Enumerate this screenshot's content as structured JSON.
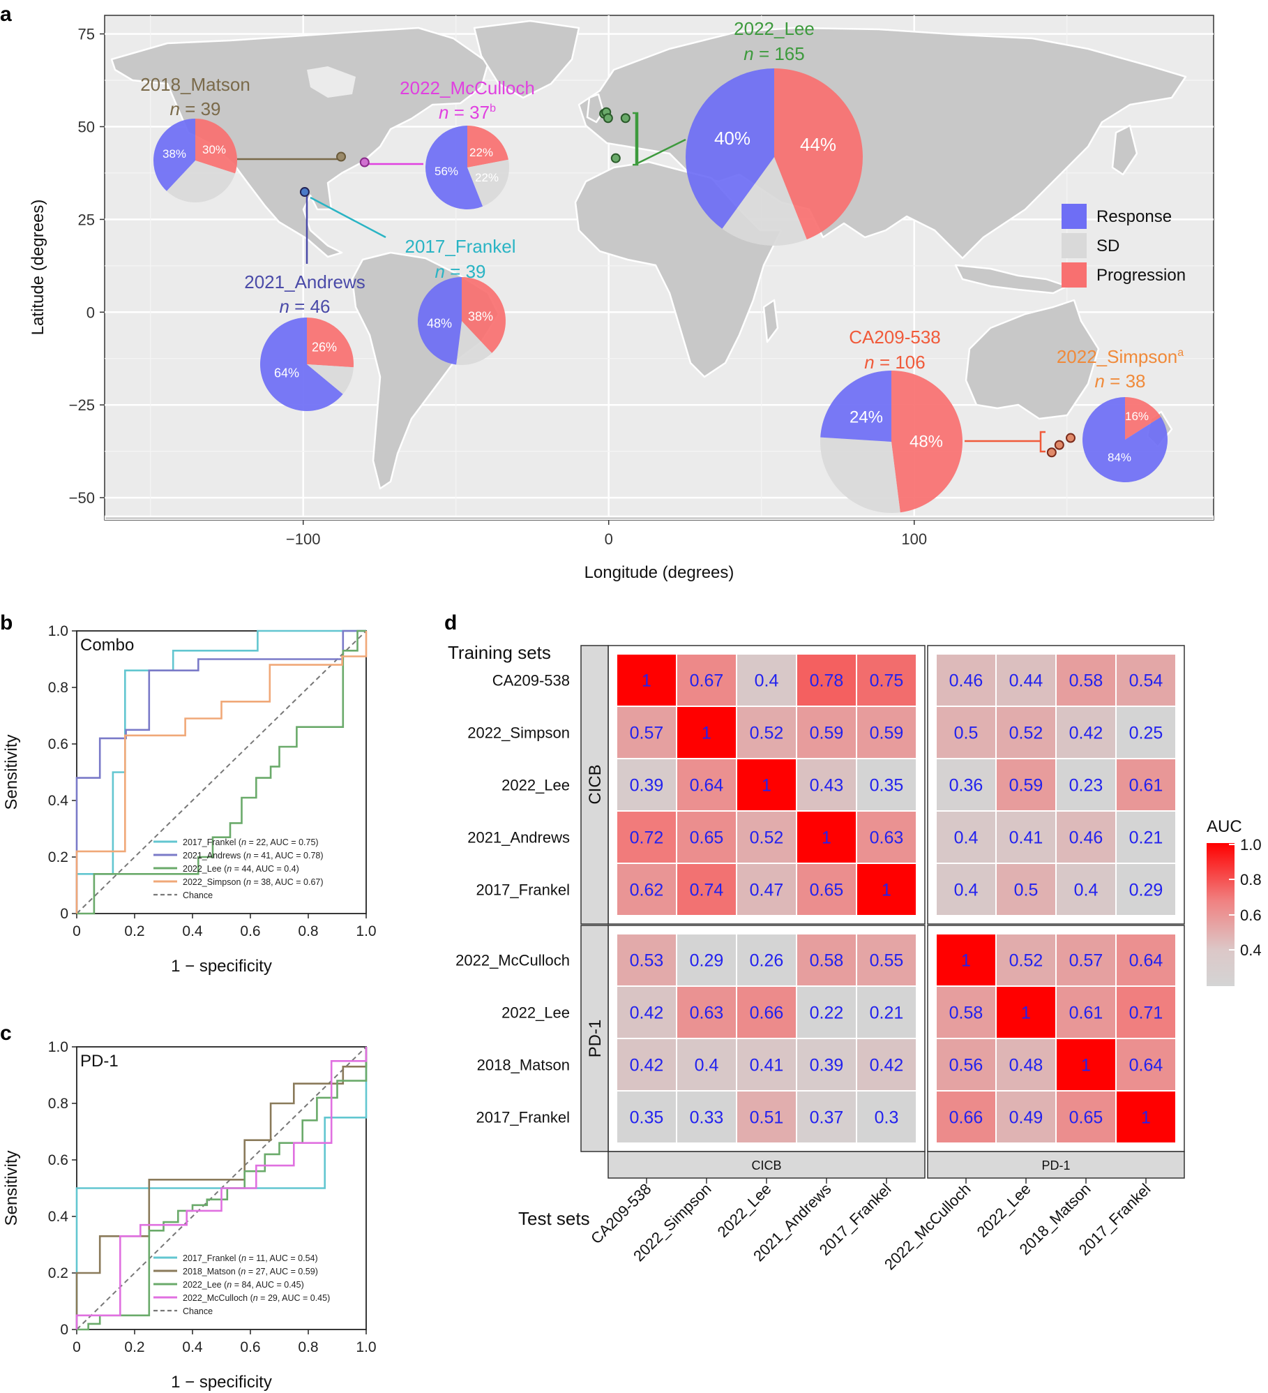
{
  "panel_labels": {
    "a": "a",
    "b": "b",
    "c": "c",
    "d": "d"
  },
  "colors": {
    "response": "#6e6ef5",
    "sd": "#d9d9d9",
    "progression": "#f87070",
    "land": "#c8c8c8",
    "ocean": "#ebebeb",
    "matson": "#7a6a4a",
    "mcculloch": "#e040e0",
    "andrews": "#4a4aa8",
    "frankel": "#2ab4c4",
    "lee": "#3d9a3d",
    "ca209": "#f05a3a",
    "simpson": "#f08a3a",
    "heat_high": "#ff0000",
    "heat_low": "#d4d4d4",
    "heat_text": "#2222ee"
  },
  "chart_data": [
    {
      "id": "a",
      "type": "pie",
      "title": "",
      "xlabel": "Longitude (degrees)",
      "ylabel": "Latitude (degrees)",
      "xlim": [
        -165,
        198
      ],
      "ylim": [
        -56,
        80
      ],
      "xticks": [
        -100,
        0,
        100
      ],
      "xtick_labels": [
        "−100",
        "0",
        "100"
      ],
      "yticks": [
        75,
        50,
        25,
        0,
        -25,
        -50
      ],
      "ytick_labels": [
        "75",
        "50",
        "25",
        "0",
        "−25",
        "−50"
      ],
      "legend": {
        "position": "right",
        "entries": [
          "Response",
          "SD",
          "Progression"
        ]
      },
      "cohorts": [
        {
          "name": "2018_Matson",
          "n_label": "n = 39",
          "sup": "",
          "site": [
            -87.6,
            41.9
          ],
          "response": 38,
          "sd": 32,
          "progression": 30,
          "labels": {
            "response": "38%",
            "progression": "30%",
            "sd": ""
          }
        },
        {
          "name": "2022_McCulloch",
          "n_label": "n = 37",
          "sup": "b",
          "site": [
            -79.9,
            40.4
          ],
          "response": 56,
          "sd": 22,
          "progression": 22,
          "labels": {
            "response": "56%",
            "progression": "22%",
            "sd": "22%"
          }
        },
        {
          "name": "2022_Lee",
          "n_label": "n = 165",
          "sup": "",
          "sites": [
            [
              -0.5,
              53.5
            ],
            [
              -0.2,
              53.8
            ],
            [
              0.5,
              52.2
            ],
            [
              5.5,
              52.3
            ],
            [
              2.3,
              48.9
            ],
            [
              2.5,
              41.5
            ]
          ],
          "response": 40,
          "sd": 16,
          "progression": 44,
          "labels": {
            "response": "40%",
            "progression": "44%",
            "sd": ""
          }
        },
        {
          "name": "2017_Frankel",
          "n_label": "n = 39",
          "sup": "",
          "site": [
            -99.5,
            32.4
          ],
          "response": 48,
          "sd": 14,
          "progression": 38,
          "labels": {
            "response": "48%",
            "progression": "38%",
            "sd": ""
          }
        },
        {
          "name": "2021_Andrews",
          "n_label": "n = 46",
          "sup": "",
          "site": [
            -99.5,
            32.4
          ],
          "response": 64,
          "sd": 10,
          "progression": 26,
          "labels": {
            "response": "64%",
            "progression": "26%",
            "sd": ""
          }
        },
        {
          "name": "CA209-538",
          "n_label": "n = 106",
          "sup": "",
          "sites": [
            [
              145,
              -37.8
            ],
            [
              147.5,
              -35.8
            ],
            [
              151.2,
              -33.9
            ]
          ],
          "response": 24,
          "sd": 28,
          "progression": 48,
          "labels": {
            "response": "24%",
            "progression": "48%",
            "sd": ""
          }
        },
        {
          "name": "2022_Simpson",
          "n_label": "n = 38",
          "sup": "a",
          "sites": [
            [
              151.2,
              -33.9
            ]
          ],
          "response": 84,
          "sd": 0,
          "progression": 16,
          "labels": {
            "response": "84%",
            "progression": "16%",
            "sd": ""
          }
        }
      ]
    },
    {
      "id": "b",
      "type": "line",
      "panel_title": "Combo",
      "xlabel": "1 − specificity",
      "ylabel": "Sensitivity",
      "xlim": [
        0,
        1
      ],
      "ylim": [
        0,
        1
      ],
      "ticks": [
        "0",
        "0.2",
        "0.4",
        "0.6",
        "0.8",
        "1.0"
      ],
      "series": [
        {
          "name": "2017_Frankel",
          "n": "22",
          "auc": "0.75",
          "color": "#62c6d0",
          "points": [
            [
              0,
              0
            ],
            [
              0,
              0.14
            ],
            [
              0.125,
              0.14
            ],
            [
              0.125,
              0.5
            ],
            [
              0.167,
              0.5
            ],
            [
              0.167,
              0.86
            ],
            [
              0.333,
              0.86
            ],
            [
              0.333,
              0.93
            ],
            [
              0.625,
              0.93
            ],
            [
              0.625,
              1
            ],
            [
              1,
              1
            ]
          ]
        },
        {
          "name": "2021_Andrews",
          "n": "41",
          "auc": "0.78",
          "color": "#7a7ac8",
          "points": [
            [
              0,
              0
            ],
            [
              0,
              0.48
            ],
            [
              0.08,
              0.48
            ],
            [
              0.08,
              0.62
            ],
            [
              0.17,
              0.62
            ],
            [
              0.17,
              0.65
            ],
            [
              0.25,
              0.65
            ],
            [
              0.25,
              0.86
            ],
            [
              0.42,
              0.86
            ],
            [
              0.42,
              0.9
            ],
            [
              0.92,
              0.9
            ],
            [
              0.92,
              1
            ],
            [
              1,
              1
            ]
          ]
        },
        {
          "name": "2022_Lee",
          "n": "44",
          "auc": "0.4",
          "color": "#6aaa6a",
          "points": [
            [
              0,
              0
            ],
            [
              0.06,
              0
            ],
            [
              0.06,
              0.14
            ],
            [
              0.42,
              0.14
            ],
            [
              0.42,
              0.2
            ],
            [
              0.47,
              0.2
            ],
            [
              0.47,
              0.27
            ],
            [
              0.53,
              0.27
            ],
            [
              0.53,
              0.32
            ],
            [
              0.57,
              0.32
            ],
            [
              0.57,
              0.41
            ],
            [
              0.62,
              0.41
            ],
            [
              0.62,
              0.48
            ],
            [
              0.67,
              0.48
            ],
            [
              0.67,
              0.52
            ],
            [
              0.7,
              0.52
            ],
            [
              0.7,
              0.59
            ],
            [
              0.76,
              0.59
            ],
            [
              0.76,
              0.66
            ],
            [
              0.92,
              0.66
            ],
            [
              0.92,
              0.93
            ],
            [
              0.97,
              0.93
            ],
            [
              0.97,
              1
            ],
            [
              1,
              1
            ]
          ]
        },
        {
          "name": "2022_Simpson",
          "n": "38",
          "auc": "0.67",
          "color": "#f0a878",
          "points": [
            [
              0,
              0
            ],
            [
              0,
              0.22
            ],
            [
              0.167,
              0.22
            ],
            [
              0.167,
              0.63
            ],
            [
              0.375,
              0.63
            ],
            [
              0.375,
              0.69
            ],
            [
              0.5,
              0.69
            ],
            [
              0.5,
              0.75
            ],
            [
              0.667,
              0.75
            ],
            [
              0.667,
              0.88
            ],
            [
              0.917,
              0.88
            ],
            [
              0.917,
              0.91
            ],
            [
              1,
              0.91
            ],
            [
              1,
              1
            ]
          ]
        }
      ],
      "chance_label": "Chance"
    },
    {
      "id": "c",
      "type": "line",
      "panel_title": "PD-1",
      "xlabel": "1 − specificity",
      "ylabel": "Sensitivity",
      "xlim": [
        0,
        1
      ],
      "ylim": [
        0,
        1
      ],
      "ticks": [
        "0",
        "0.2",
        "0.4",
        "0.6",
        "0.8",
        "1.0"
      ],
      "series": [
        {
          "name": "2017_Frankel",
          "n": "11",
          "auc": "0.54",
          "color": "#62c6d0",
          "points": [
            [
              0,
              0
            ],
            [
              0,
              0.5
            ],
            [
              0.857,
              0.5
            ],
            [
              0.857,
              0.75
            ],
            [
              1,
              0.75
            ],
            [
              1,
              1
            ]
          ]
        },
        {
          "name": "2018_Matson",
          "n": "27",
          "auc": "0.59",
          "color": "#8a7a5a",
          "points": [
            [
              0,
              0
            ],
            [
              0,
              0.2
            ],
            [
              0.08,
              0.2
            ],
            [
              0.08,
              0.33
            ],
            [
              0.25,
              0.33
            ],
            [
              0.25,
              0.53
            ],
            [
              0.58,
              0.53
            ],
            [
              0.58,
              0.67
            ],
            [
              0.67,
              0.67
            ],
            [
              0.67,
              0.8
            ],
            [
              0.75,
              0.8
            ],
            [
              0.75,
              0.87
            ],
            [
              0.92,
              0.87
            ],
            [
              0.92,
              0.93
            ],
            [
              1,
              0.93
            ],
            [
              1,
              1
            ]
          ]
        },
        {
          "name": "2022_Lee",
          "n": "84",
          "auc": "0.45",
          "color": "#6aaa6a",
          "points": [
            [
              0,
              0
            ],
            [
              0.04,
              0
            ],
            [
              0.04,
              0.02
            ],
            [
              0.08,
              0.02
            ],
            [
              0.08,
              0.05
            ],
            [
              0.25,
              0.05
            ],
            [
              0.25,
              0.35
            ],
            [
              0.3,
              0.35
            ],
            [
              0.3,
              0.38
            ],
            [
              0.35,
              0.38
            ],
            [
              0.35,
              0.42
            ],
            [
              0.4,
              0.42
            ],
            [
              0.4,
              0.44
            ],
            [
              0.45,
              0.44
            ],
            [
              0.45,
              0.46
            ],
            [
              0.52,
              0.46
            ],
            [
              0.52,
              0.5
            ],
            [
              0.58,
              0.5
            ],
            [
              0.58,
              0.56
            ],
            [
              0.65,
              0.56
            ],
            [
              0.65,
              0.62
            ],
            [
              0.7,
              0.62
            ],
            [
              0.7,
              0.66
            ],
            [
              0.78,
              0.66
            ],
            [
              0.78,
              0.74
            ],
            [
              0.83,
              0.74
            ],
            [
              0.83,
              0.82
            ],
            [
              0.9,
              0.82
            ],
            [
              0.9,
              0.88
            ],
            [
              1,
              0.88
            ],
            [
              1,
              1
            ]
          ]
        },
        {
          "name": "2022_McCulloch",
          "n": "29",
          "auc": "0.45",
          "color": "#e070e0",
          "points": [
            [
              0,
              0
            ],
            [
              0,
              0.05
            ],
            [
              0.15,
              0.05
            ],
            [
              0.15,
              0.33
            ],
            [
              0.22,
              0.33
            ],
            [
              0.22,
              0.37
            ],
            [
              0.38,
              0.37
            ],
            [
              0.38,
              0.42
            ],
            [
              0.5,
              0.42
            ],
            [
              0.5,
              0.5
            ],
            [
              0.62,
              0.5
            ],
            [
              0.62,
              0.58
            ],
            [
              0.75,
              0.58
            ],
            [
              0.75,
              0.66
            ],
            [
              0.88,
              0.66
            ],
            [
              0.88,
              0.95
            ],
            [
              1,
              0.95
            ],
            [
              1,
              1
            ]
          ]
        }
      ],
      "chance_label": "Chance"
    },
    {
      "id": "d",
      "type": "heatmap",
      "legend_title": "AUC",
      "legend_ticks": [
        "1.0",
        "0.8",
        "0.6",
        "0.4"
      ],
      "training_label": "Training sets",
      "test_label": "Test sets",
      "row_groups": [
        "CICB",
        "PD-1"
      ],
      "col_groups": [
        "CICB",
        "PD-1"
      ],
      "rows_cicb": [
        "CA209-538",
        "2022_Simpson",
        "2022_Lee",
        "2021_Andrews",
        "2017_Frankel"
      ],
      "rows_pd1": [
        "2022_McCulloch",
        "2022_Lee",
        "2018_Matson",
        "2017_Frankel"
      ],
      "cols_cicb": [
        "CA209-538",
        "2022_Simpson",
        "2022_Lee",
        "2021_Andrews",
        "2017_Frankel"
      ],
      "cols_pd1": [
        "2022_McCulloch",
        "2022_Lee",
        "2018_Matson",
        "2017_Frankel"
      ],
      "values_cicb_cicb": [
        [
          "1",
          "0.67",
          "0.4",
          "0.78",
          "0.75"
        ],
        [
          "0.57",
          "1",
          "0.52",
          "0.59",
          "0.59"
        ],
        [
          "0.39",
          "0.64",
          "1",
          "0.43",
          "0.35"
        ],
        [
          "0.72",
          "0.65",
          "0.52",
          "1",
          "0.63"
        ],
        [
          "0.62",
          "0.74",
          "0.47",
          "0.65",
          "1"
        ]
      ],
      "values_cicb_pd1": [
        [
          "0.46",
          "0.44",
          "0.58",
          "0.54"
        ],
        [
          "0.5",
          "0.52",
          "0.42",
          "0.25"
        ],
        [
          "0.36",
          "0.59",
          "0.23",
          "0.61"
        ],
        [
          "0.4",
          "0.41",
          "0.46",
          "0.21"
        ],
        [
          "0.4",
          "0.5",
          "0.4",
          "0.29"
        ]
      ],
      "values_pd1_cicb": [
        [
          "0.53",
          "0.29",
          "0.26",
          "0.58",
          "0.55"
        ],
        [
          "0.42",
          "0.63",
          "0.66",
          "0.22",
          "0.21"
        ],
        [
          "0.42",
          "0.4",
          "0.41",
          "0.39",
          "0.42"
        ],
        [
          "0.35",
          "0.33",
          "0.51",
          "0.37",
          "0.3"
        ]
      ],
      "values_pd1_pd1": [
        [
          "1",
          "0.52",
          "0.57",
          "0.64"
        ],
        [
          "0.58",
          "1",
          "0.61",
          "0.71"
        ],
        [
          "0.56",
          "0.48",
          "1",
          "0.64"
        ],
        [
          "0.66",
          "0.49",
          "0.65",
          "1"
        ]
      ]
    }
  ]
}
